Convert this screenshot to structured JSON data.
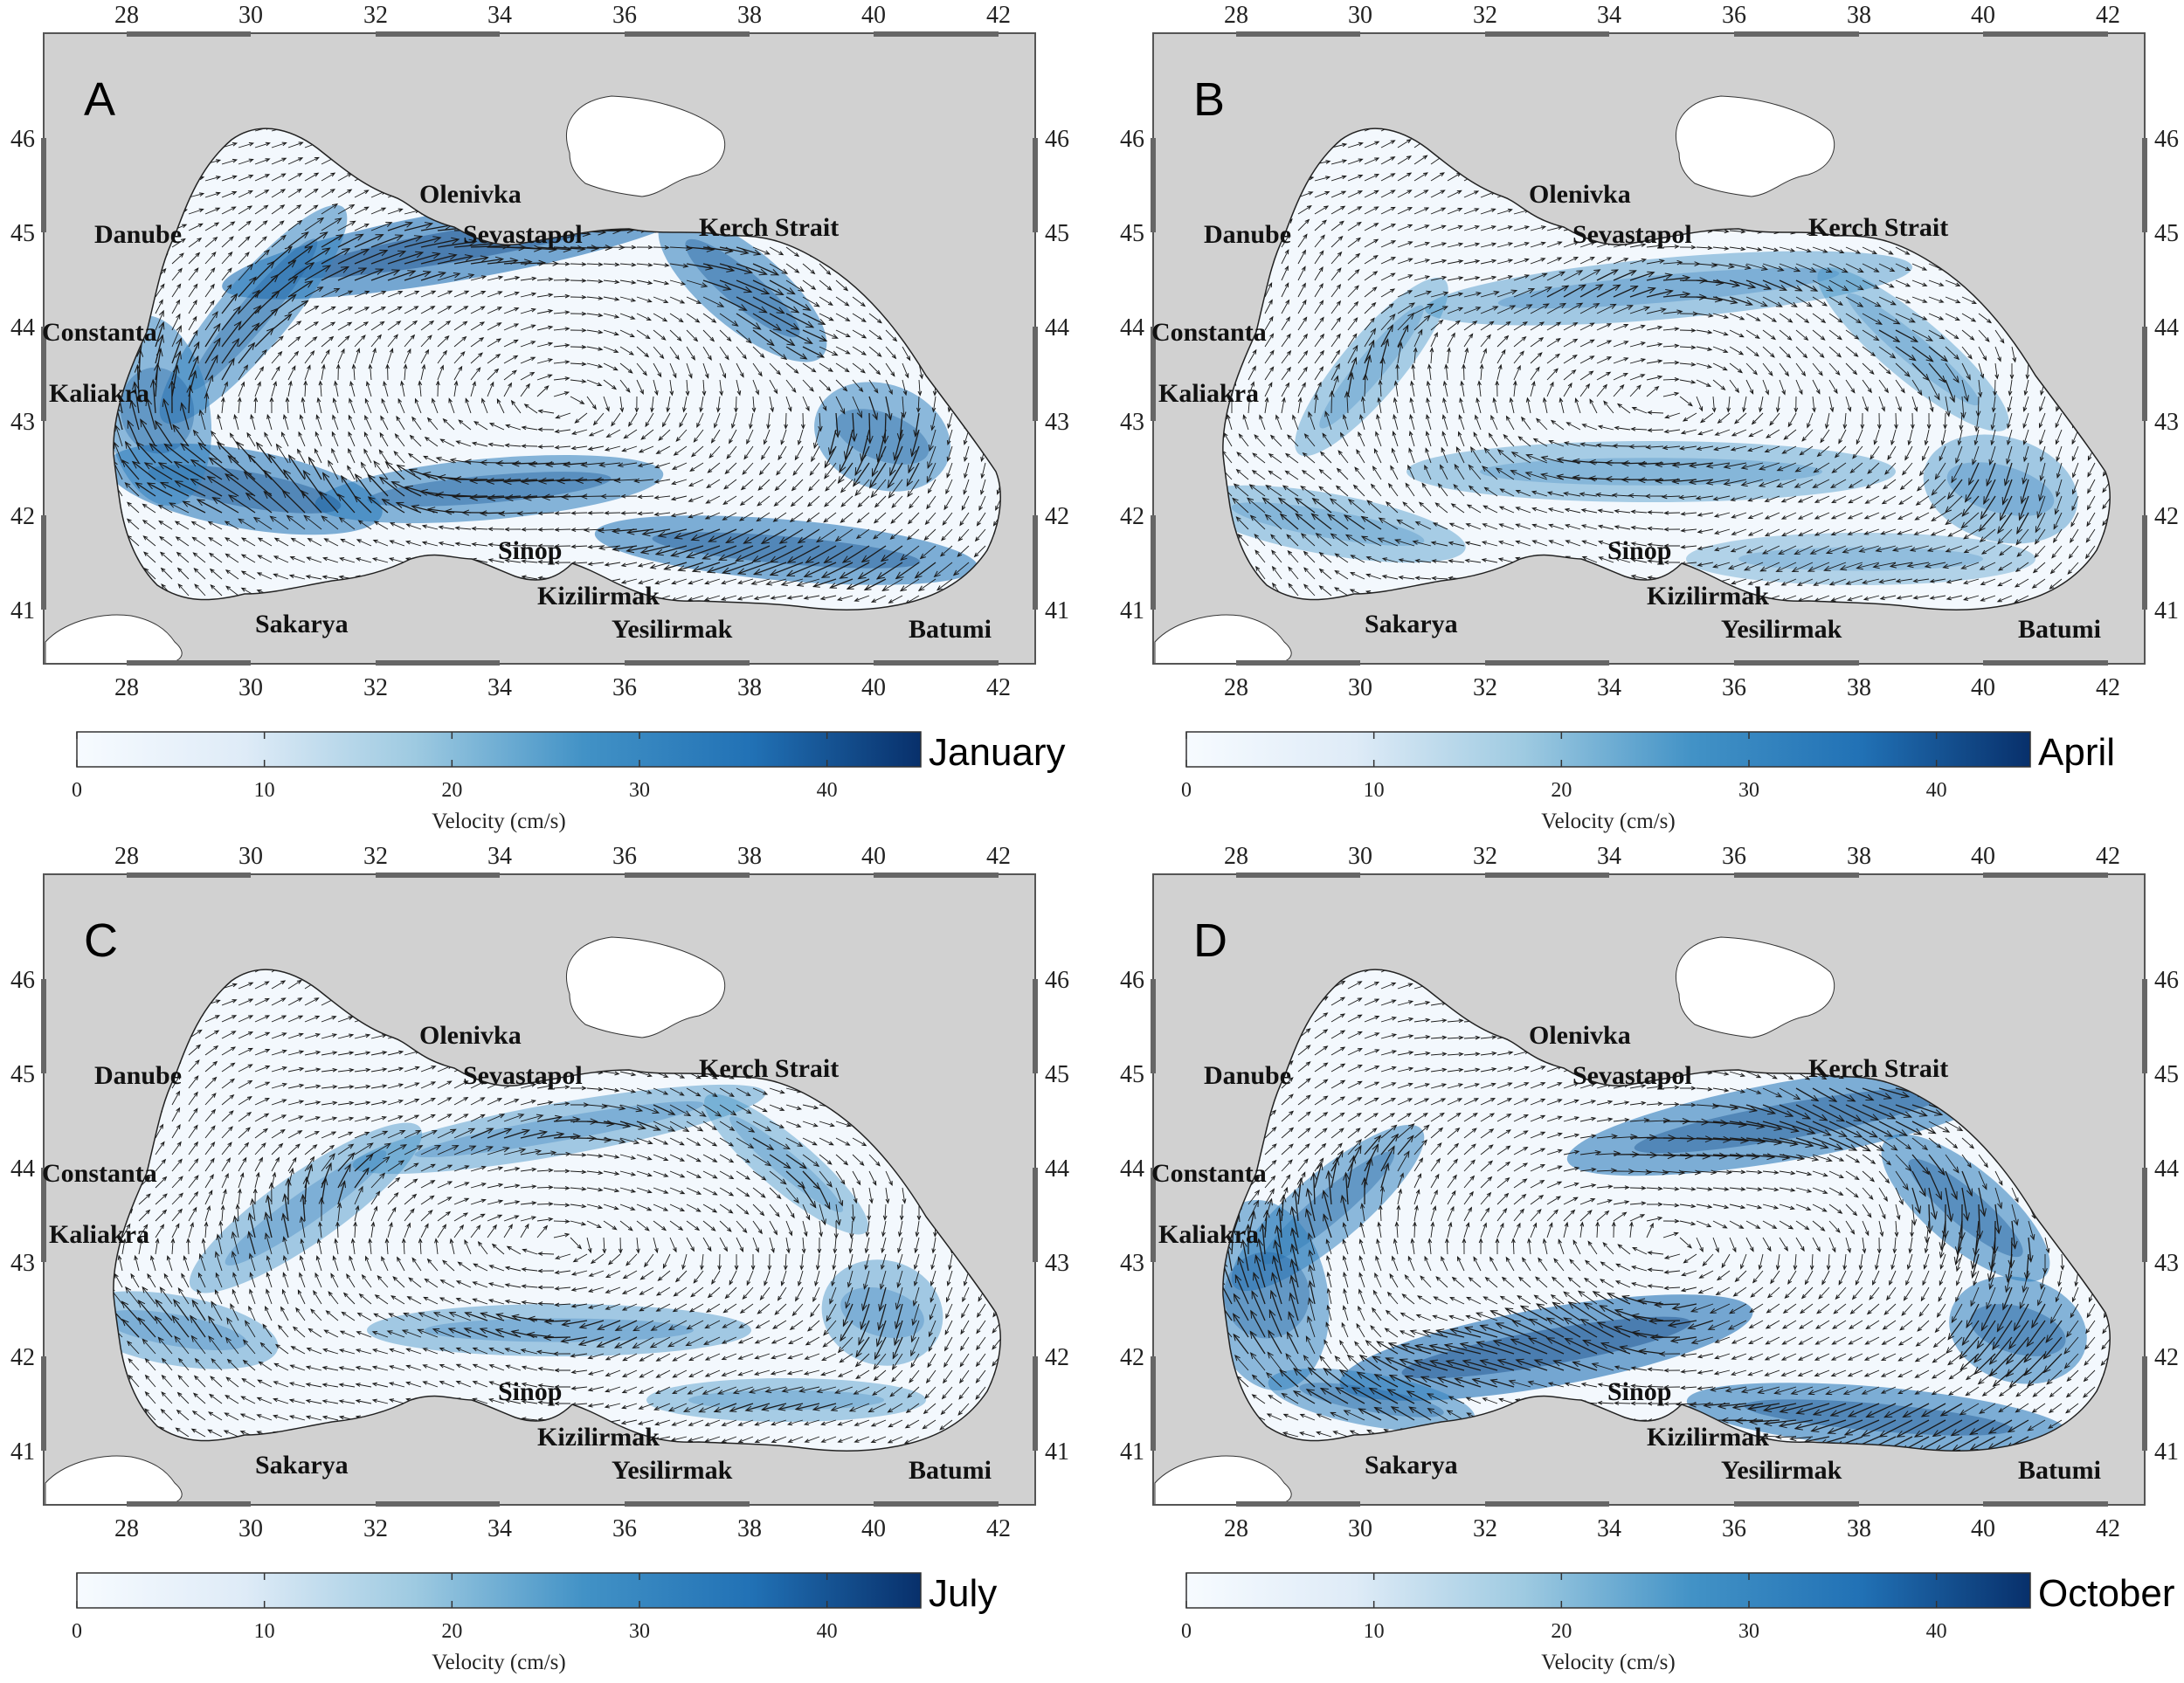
{
  "figure": {
    "colormap": [
      "#f7fbff",
      "#deebf7",
      "#9ecae1",
      "#4292c6",
      "#2171b5",
      "#08306b"
    ],
    "land_color": "#d1d1d1",
    "sea_color": "#f3f8fd",
    "arrow_color": "#1a1a1a"
  },
  "axes": {
    "x_ticks": [
      "28",
      "30",
      "32",
      "34",
      "36",
      "38",
      "40",
      "42"
    ],
    "y_ticks": [
      "46",
      "45",
      "44",
      "43",
      "42",
      "41"
    ]
  },
  "place_labels": {
    "danube": "Danube",
    "constanta": "Constanta",
    "kaliakra": "Kaliakra",
    "olenivka": "Olenivka",
    "sevastapol": "Sevastapol",
    "kerch": "Kerch Strait",
    "sinop": "Sinop",
    "kizilirmak": "Kizilirmak",
    "yesilirmak": "Yesilirmak",
    "sakarya": "Sakarya",
    "batumi": "Batumi"
  },
  "colorbar": {
    "label": "Velocity (cm/s)",
    "ticks": [
      "0",
      "10",
      "20",
      "30",
      "40"
    ],
    "range": [
      0,
      45
    ]
  },
  "panels": [
    {
      "letter": "A",
      "month": "January"
    },
    {
      "letter": "B",
      "month": "April"
    },
    {
      "letter": "C",
      "month": "July"
    },
    {
      "letter": "D",
      "month": "October"
    }
  ]
}
